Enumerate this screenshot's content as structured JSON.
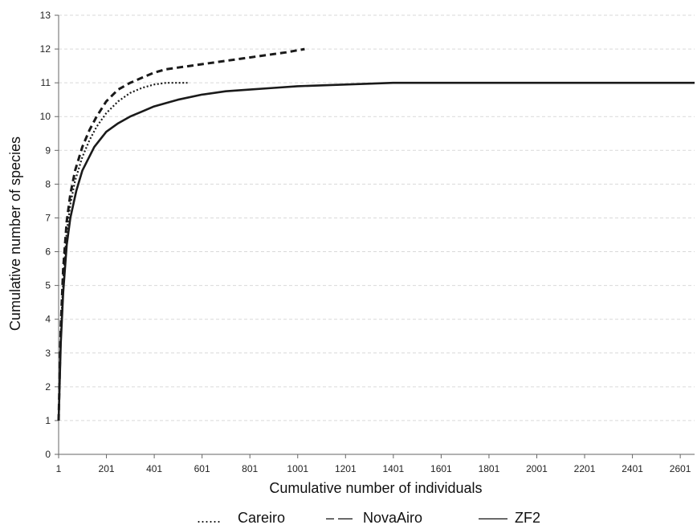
{
  "chart_data": {
    "type": "line",
    "title": "",
    "xlabel": "Cumulative number of individuals",
    "ylabel": "Cumulative number of species",
    "xlim": [
      1,
      2661
    ],
    "ylim": [
      0,
      13
    ],
    "xticks": [
      1,
      201,
      401,
      601,
      801,
      1001,
      1201,
      1401,
      1601,
      1801,
      2001,
      2201,
      2401,
      2601
    ],
    "yticks": [
      0,
      1,
      2,
      3,
      4,
      5,
      6,
      7,
      8,
      9,
      10,
      11,
      12,
      13
    ],
    "grid": true,
    "legend_position": "bottom",
    "series": [
      {
        "name": "Careiro",
        "style": "dotted",
        "legend_marker": "......",
        "x": [
          1,
          10,
          20,
          35,
          50,
          70,
          100,
          130,
          160,
          200,
          250,
          300,
          350,
          400,
          450,
          500,
          540
        ],
        "y": [
          1,
          3.6,
          5.2,
          6.6,
          7.4,
          8.1,
          8.8,
          9.3,
          9.7,
          10.1,
          10.45,
          10.7,
          10.85,
          10.95,
          11.0,
          11.0,
          11.0
        ]
      },
      {
        "name": "NovaAiro",
        "style": "dashed",
        "legend_marker": "– —",
        "x": [
          1,
          10,
          20,
          35,
          50,
          70,
          100,
          130,
          160,
          200,
          250,
          300,
          350,
          400,
          450,
          500,
          600,
          700,
          800,
          900,
          950,
          1030
        ],
        "y": [
          1,
          3.8,
          5.5,
          6.9,
          7.7,
          8.4,
          9.1,
          9.6,
          10.0,
          10.45,
          10.8,
          11.0,
          11.15,
          11.3,
          11.4,
          11.45,
          11.55,
          11.65,
          11.75,
          11.85,
          11.9,
          12.0
        ]
      },
      {
        "name": "ZF2",
        "style": "solid",
        "legend_marker": "——",
        "x": [
          1,
          10,
          20,
          35,
          50,
          75,
          100,
          150,
          200,
          250,
          300,
          350,
          400,
          500,
          600,
          700,
          800,
          900,
          1000,
          1200,
          1400,
          1600,
          2000,
          2400,
          2661
        ],
        "y": [
          1,
          3.3,
          4.8,
          6.2,
          7.0,
          7.8,
          8.4,
          9.1,
          9.55,
          9.8,
          10.0,
          10.15,
          10.3,
          10.5,
          10.65,
          10.75,
          10.8,
          10.85,
          10.9,
          10.95,
          11.0,
          11.0,
          11.0,
          11.0,
          11.0
        ]
      }
    ]
  }
}
